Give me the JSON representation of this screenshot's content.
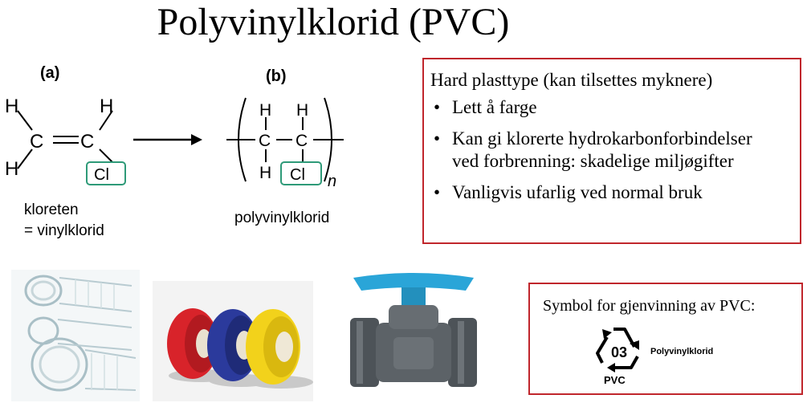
{
  "title": "Polyvinylklorid (PVC)",
  "chemistry": {
    "label_a": "(a)",
    "label_b": "(b)",
    "caption_a_line1": "kloreten",
    "caption_a_line2": "= vinylklorid",
    "caption_b": "polyvinylklorid",
    "atom_h": "H",
    "atom_c": "C",
    "atom_cl": "Cl",
    "subscript_n": "n",
    "highlight_color": "#2e9a78"
  },
  "infobox": {
    "heading": "Hard plasttype (kan tilsettes myknere)",
    "bullets": [
      "Lett å farge",
      "Kan gi klorerte hydrokarbonforbindelser ved forbrenning: skadelige miljøgifter",
      "Vanligvis ufarlig ved normal bruk"
    ],
    "border_color": "#c0262c"
  },
  "recycling": {
    "caption": "Symbol for gjenvinning av PVC:",
    "code": "03",
    "abbreviation": "PVC",
    "material_name": "Polyvinylklorid"
  },
  "photos": {
    "hose_icon": "clear-pvc-hose",
    "tape_icon": "insulating-tape-rolls",
    "valve_icon": "pvc-ball-valve",
    "tape_colors": [
      "#d8232a",
      "#2b3a9c",
      "#f2d21b"
    ],
    "valve_handle_color": "#2aa5d8"
  }
}
